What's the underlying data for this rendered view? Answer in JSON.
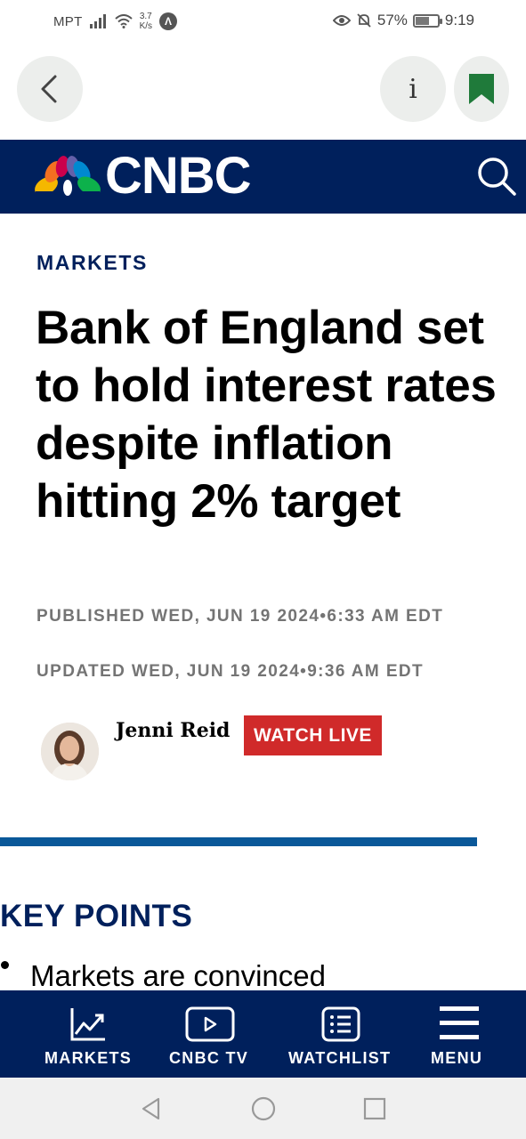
{
  "status_bar": {
    "carrier": "MPT",
    "speed_value": "3.7",
    "speed_unit": "K/s",
    "battery": "57%",
    "battery_level": 0.57,
    "time": "9:19"
  },
  "header": {
    "brand": "CNBC"
  },
  "article": {
    "section": "MARKETS",
    "headline": "Bank of England set to hold interest rates despite inflation hitting 2% target",
    "published": "PUBLISHED WED, JUN 19 2024•6:33 AM EDT",
    "updated": "UPDATED WED, JUN 19 2024•9:36 AM EDT",
    "author": "Jenni Reid",
    "watch_live_label": "WATCH LIVE",
    "key_points_title": "KEY POINTS",
    "key_points": [
      "Markets are convinced"
    ]
  },
  "bottom_nav": {
    "items": [
      {
        "label": "MARKETS",
        "icon": "chart-line-icon"
      },
      {
        "label": "CNBC TV",
        "icon": "play-icon"
      },
      {
        "label": "WATCHLIST",
        "icon": "list-icon"
      },
      {
        "label": "MENU",
        "icon": "hamburger-icon"
      }
    ]
  },
  "colors": {
    "navy": "#00205c",
    "accent_blue": "#0a5899",
    "live_red": "#d02a2a",
    "bookmark_green": "#1f7a3a",
    "meta_gray": "#747474"
  }
}
